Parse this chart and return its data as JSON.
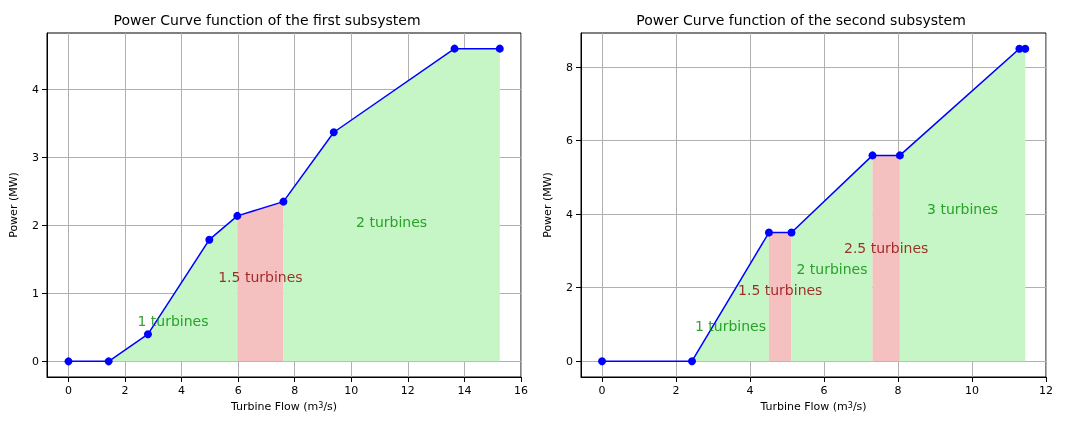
{
  "chart_data": [
    {
      "type": "line",
      "title": "Power Curve function of the first subsystem",
      "xlabel": "Turbine Flow (m$^{3}$/s)",
      "ylabel": "Power (MW)",
      "xlim": [
        -0.76,
        16
      ],
      "xticks": [
        0,
        2,
        4,
        6,
        8,
        10,
        12,
        14,
        16
      ],
      "ylim": [
        -0.23,
        4.83
      ],
      "yticks": [
        0,
        1,
        2,
        3,
        4
      ],
      "grid": true,
      "line_style": "solid",
      "series": [
        {
          "type": "area",
          "color": "#c6f5c6",
          "x": [
            1.42,
            2.81,
            4.98,
            5.97
          ],
          "values": [
            0,
            0.4,
            1.79,
            2.14
          ]
        },
        {
          "type": "area",
          "color": "#f5c0c0",
          "x": [
            5.97,
            7.6
          ],
          "values": [
            2.14,
            2.35
          ]
        },
        {
          "type": "area",
          "color": "#c6f5c6",
          "x": [
            7.6,
            9.38,
            13.65,
            15.25
          ],
          "values": [
            2.35,
            3.37,
            4.6,
            4.6
          ]
        },
        {
          "color": "#0000ff",
          "marker": "circle",
          "x": [
            0,
            1.42,
            2.81,
            4.98,
            5.97,
            7.6,
            9.38,
            13.65,
            15.25
          ],
          "values": [
            0,
            0,
            0.4,
            1.79,
            2.14,
            2.35,
            3.37,
            4.6,
            4.6
          ]
        }
      ],
      "annotations": [
        "1 turbines",
        "1.5 turbines",
        "2 turbines"
      ]
    },
    {
      "type": "line",
      "title": "Power Curve function of the second subsystem",
      "xlabel": "Turbine Flow (m$^{3}$/s)",
      "ylabel": "Power (MW)",
      "xlim": [
        -0.57,
        12
      ],
      "xticks": [
        0,
        2,
        4,
        6,
        8,
        10,
        12
      ],
      "ylim": [
        -0.43,
        8.93
      ],
      "yticks": [
        0,
        2,
        4,
        6,
        8
      ],
      "grid": true,
      "line_style": "solid",
      "series": [
        {
          "type": "area",
          "color": "#c6f5c6",
          "x": [
            2.43,
            4.51
          ],
          "values": [
            0,
            3.5
          ]
        },
        {
          "type": "area",
          "color": "#f5c0c0",
          "x": [
            4.51,
            5.12
          ],
          "values": [
            3.5,
            3.5
          ]
        },
        {
          "type": "area",
          "color": "#c6f5c6",
          "x": [
            5.12,
            7.31
          ],
          "values": [
            3.5,
            5.6
          ]
        },
        {
          "type": "area",
          "color": "#f5c0c0",
          "x": [
            7.31,
            8.05
          ],
          "values": [
            5.6,
            5.6
          ]
        },
        {
          "type": "area",
          "color": "#c6f5c6",
          "x": [
            8.05,
            11.28,
            11.44
          ],
          "values": [
            5.6,
            8.5,
            8.5
          ]
        },
        {
          "color": "#0000ff",
          "marker": "circle",
          "x": [
            0,
            2.43,
            4.51,
            5.12,
            7.31,
            8.05,
            11.28,
            11.44
          ],
          "values": [
            0,
            0,
            3.5,
            3.5,
            5.6,
            5.6,
            8.5,
            8.5
          ]
        }
      ],
      "annotations": [
        "1 turbines",
        "1.5 turbines",
        "2 turbines",
        "2.5 turbines",
        "3 turbines"
      ]
    }
  ]
}
